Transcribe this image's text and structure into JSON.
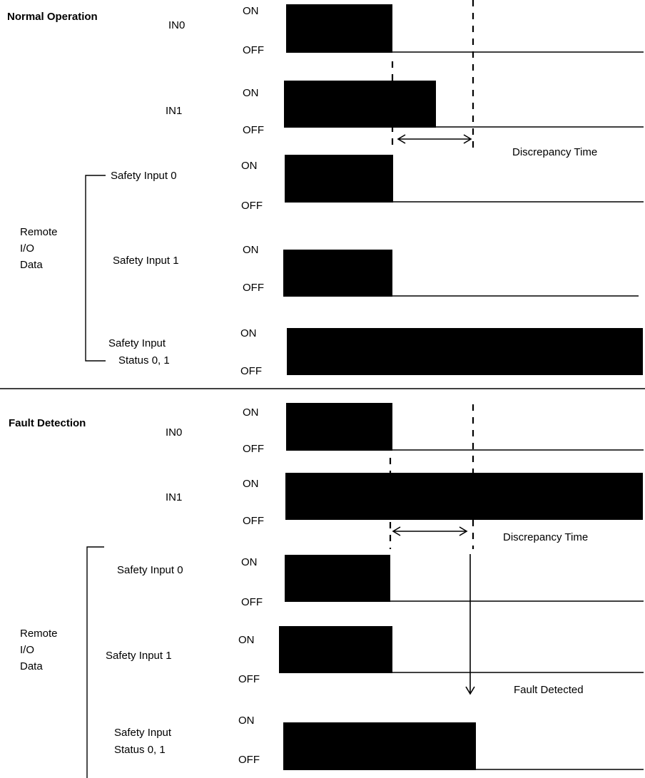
{
  "sections": [
    {
      "title": "Normal Operation",
      "group_label": [
        "Remote",
        "I/O",
        "Data"
      ],
      "signals": [
        {
          "name": "IN0",
          "on": "ON",
          "off": "OFF"
        },
        {
          "name": "IN1",
          "on": "ON",
          "off": "OFF"
        },
        {
          "name": "Safety Input 0",
          "on": "ON",
          "off": "OFF"
        },
        {
          "name": "Safety Input 1",
          "on": "ON",
          "off": "OFF"
        },
        {
          "name": [
            "Safety Input",
            "Status 0, 1"
          ],
          "on": "ON",
          "off": "OFF"
        }
      ],
      "discrepancy_label": "Discrepancy Time"
    },
    {
      "title": "Fault Detection",
      "group_label": [
        "Remote",
        "I/O",
        "Data"
      ],
      "signals": [
        {
          "name": "IN0",
          "on": "ON",
          "off": "OFF"
        },
        {
          "name": "IN1",
          "on": "ON",
          "off": "OFF"
        },
        {
          "name": "Safety Input 0",
          "on": "ON",
          "off": "OFF"
        },
        {
          "name": "Safety Input 1",
          "on": "ON",
          "off": "OFF"
        },
        {
          "name": [
            "Safety Input",
            "Status 0, 1"
          ],
          "on": "ON",
          "off": "OFF"
        }
      ],
      "discrepancy_label": "Discrepancy Time",
      "fault_label": "Fault Detected"
    }
  ]
}
